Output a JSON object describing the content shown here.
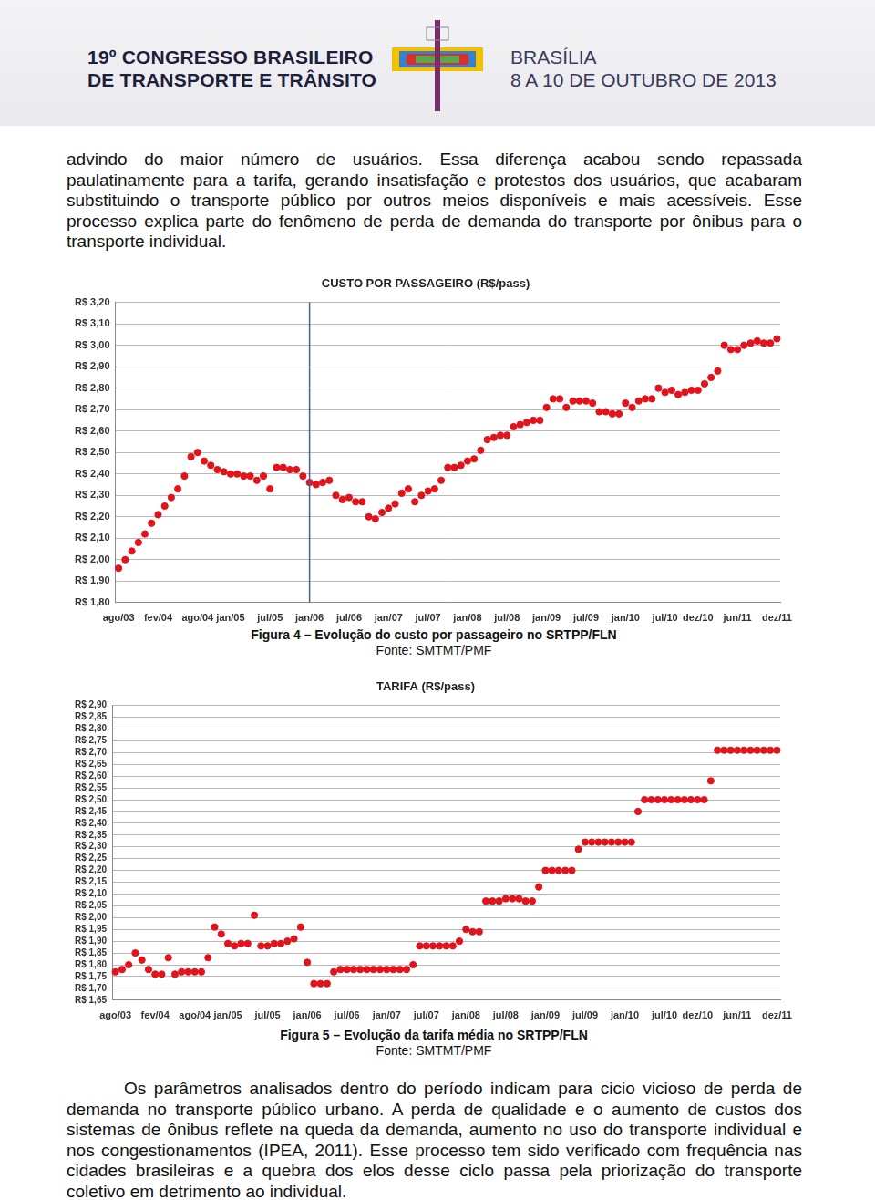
{
  "header": {
    "title_lines": [
      "19º CONGRESSO BRASILEIRO",
      "DE TRANSPORTE E TRÂNSITO"
    ],
    "place": "BRASÍLIA",
    "dates": "8 A 10 DE OUTUBRO DE 2013"
  },
  "paragraphs": [
    "advindo do maior número de usuários. Essa diferença acabou sendo repassada paulatinamente para a tarifa, gerando insatisfação e protestos dos usuários, que acabaram substituindo o transporte público por outros meios disponíveis e mais acessíveis. Esse processo explica parte do fenômeno de perda de demanda do transporte por ônibus para o transporte individual.",
    "Os parâmetros analisados dentro do período indicam para cicio vicioso de perda de demanda no transporte público urbano. A perda de qualidade e o aumento de custos dos sistemas de ônibus reflete na queda da demanda, aumento no uso do transporte individual e nos congestionamentos (IPEA, 2011). Esse processo tem sido verificado com frequência nas cidades brasileiras e a quebra dos elos desse ciclo passa pela priorização do transporte coletivo em detrimento ao individual."
  ],
  "captions": [
    {
      "title": "Figura 4 – Evolução do custo por passageiro no SRTPP/FLN",
      "source": "Fonte: SMTMT/PMF"
    },
    {
      "title": "Figura 5 – Evolução da tarifa média no SRTPP/FLN",
      "source": "Fonte: SMTMT/PMF"
    }
  ],
  "chart_data": [
    {
      "type": "line",
      "title": "CUSTO POR PASSAGEIRO (R$/pass)",
      "categories": [
        "ago/03",
        null,
        null,
        null,
        null,
        null,
        "fev/04",
        null,
        null,
        null,
        null,
        null,
        "ago/04",
        null,
        null,
        null,
        null,
        "jan/05",
        null,
        null,
        null,
        null,
        null,
        "jul/05",
        null,
        null,
        null,
        null,
        null,
        "jan/06",
        null,
        null,
        null,
        null,
        null,
        "jul/06",
        null,
        null,
        null,
        null,
        null,
        "jan/07",
        null,
        null,
        null,
        null,
        null,
        "jul/07",
        null,
        null,
        null,
        null,
        null,
        "jan/08",
        null,
        null,
        null,
        null,
        null,
        "jul/08",
        null,
        null,
        null,
        null,
        null,
        "jan/09",
        null,
        null,
        null,
        null,
        null,
        "jul/09",
        null,
        null,
        null,
        null,
        null,
        "jan/10",
        null,
        null,
        null,
        null,
        null,
        "jul/10",
        null,
        null,
        null,
        null,
        "dez/10",
        null,
        null,
        null,
        null,
        null,
        "jun/11",
        null,
        null,
        null,
        null,
        null,
        "dez/11"
      ],
      "values": [
        1.96,
        2.0,
        2.04,
        2.08,
        2.12,
        2.17,
        2.21,
        2.25,
        2.29,
        2.33,
        2.39,
        2.48,
        2.5,
        2.46,
        2.44,
        2.42,
        2.41,
        2.4,
        2.4,
        2.39,
        2.39,
        2.37,
        2.39,
        2.33,
        2.43,
        2.43,
        2.42,
        2.42,
        2.39,
        2.36,
        2.35,
        2.36,
        2.37,
        2.3,
        2.28,
        2.29,
        2.27,
        2.27,
        2.2,
        2.19,
        2.22,
        2.24,
        2.26,
        2.31,
        2.33,
        2.27,
        2.3,
        2.32,
        2.33,
        2.37,
        2.43,
        2.43,
        2.44,
        2.46,
        2.47,
        2.51,
        2.56,
        2.57,
        2.58,
        2.58,
        2.62,
        2.63,
        2.64,
        2.65,
        2.65,
        2.71,
        2.75,
        2.75,
        2.71,
        2.74,
        2.74,
        2.74,
        2.73,
        2.69,
        2.69,
        2.68,
        2.68,
        2.73,
        2.71,
        2.74,
        2.75,
        2.75,
        2.8,
        2.78,
        2.79,
        2.77,
        2.78,
        2.79,
        2.79,
        2.82,
        2.85,
        2.88,
        3.0,
        2.98,
        2.98,
        3.0,
        3.01,
        3.02,
        3.01,
        3.01,
        3.03
      ],
      "color": "#e3131b",
      "marker": "circle",
      "line_style": "none",
      "grid": true,
      "marker_line": "jan/06",
      "ylim": [
        1.8,
        3.2
      ],
      "yticks": [
        {
          "value": 1.8,
          "label": "R$ 1,80"
        },
        {
          "value": 1.9,
          "label": "R$ 1,90"
        },
        {
          "value": 2.0,
          "label": "R$ 2,00"
        },
        {
          "value": 2.1,
          "label": "R$ 2,10"
        },
        {
          "value": 2.2,
          "label": "R$ 2,20"
        },
        {
          "value": 2.3,
          "label": "R$ 2,30"
        },
        {
          "value": 2.4,
          "label": "R$ 2,40"
        },
        {
          "value": 2.5,
          "label": "R$ 2,50"
        },
        {
          "value": 2.6,
          "label": "R$ 2,60"
        },
        {
          "value": 2.7,
          "label": "R$ 2,70"
        },
        {
          "value": 2.8,
          "label": "R$ 2,80"
        },
        {
          "value": 2.9,
          "label": "R$ 2,90"
        },
        {
          "value": 3.0,
          "label": "R$ 3,00"
        },
        {
          "value": 3.1,
          "label": "R$ 3,10"
        },
        {
          "value": 3.2,
          "label": "R$ 3,20"
        }
      ]
    },
    {
      "type": "line",
      "title": "TARIFA (R$/pass)",
      "categories": [
        "ago/03",
        null,
        null,
        null,
        null,
        null,
        "fev/04",
        null,
        null,
        null,
        null,
        null,
        "ago/04",
        null,
        null,
        null,
        null,
        "jan/05",
        null,
        null,
        null,
        null,
        null,
        "jul/05",
        null,
        null,
        null,
        null,
        null,
        "jan/06",
        null,
        null,
        null,
        null,
        null,
        "jul/06",
        null,
        null,
        null,
        null,
        null,
        "jan/07",
        null,
        null,
        null,
        null,
        null,
        "jul/07",
        null,
        null,
        null,
        null,
        null,
        "jan/08",
        null,
        null,
        null,
        null,
        null,
        "jul/08",
        null,
        null,
        null,
        null,
        null,
        "jan/09",
        null,
        null,
        null,
        null,
        null,
        "jul/09",
        null,
        null,
        null,
        null,
        null,
        "jan/10",
        null,
        null,
        null,
        null,
        null,
        "jul/10",
        null,
        null,
        null,
        null,
        "dez/10",
        null,
        null,
        null,
        null,
        null,
        "jun/11",
        null,
        null,
        null,
        null,
        null,
        "dez/11"
      ],
      "values": [
        1.77,
        1.78,
        1.8,
        1.85,
        1.82,
        1.78,
        1.76,
        1.76,
        1.83,
        1.76,
        1.77,
        1.77,
        1.77,
        1.77,
        1.83,
        1.96,
        1.93,
        1.89,
        1.88,
        1.89,
        1.89,
        2.01,
        1.88,
        1.88,
        1.89,
        1.89,
        1.9,
        1.91,
        1.96,
        1.81,
        1.72,
        1.72,
        1.72,
        1.77,
        1.78,
        1.78,
        1.78,
        1.78,
        1.78,
        1.78,
        1.78,
        1.78,
        1.78,
        1.78,
        1.78,
        1.8,
        1.88,
        1.88,
        1.88,
        1.88,
        1.88,
        1.88,
        1.9,
        1.95,
        1.94,
        1.94,
        2.07,
        2.07,
        2.07,
        2.08,
        2.08,
        2.08,
        2.07,
        2.07,
        2.13,
        2.2,
        2.2,
        2.2,
        2.2,
        2.2,
        2.29,
        2.32,
        2.32,
        2.32,
        2.32,
        2.32,
        2.32,
        2.32,
        2.32,
        2.45,
        2.5,
        2.5,
        2.5,
        2.5,
        2.5,
        2.5,
        2.5,
        2.5,
        2.5,
        2.5,
        2.58,
        2.71,
        2.71,
        2.71,
        2.71,
        2.71,
        2.71,
        2.71,
        2.71,
        2.71,
        2.71
      ],
      "color": "#e3131b",
      "marker": "circle",
      "line_style": "none",
      "grid": true,
      "ylim": [
        1.65,
        2.9
      ],
      "yticks": [
        {
          "value": 1.65,
          "label": "R$ 1,65"
        },
        {
          "value": 1.7,
          "label": "R$ 1,70"
        },
        {
          "value": 1.75,
          "label": "R$ 1,75"
        },
        {
          "value": 1.8,
          "label": "R$ 1,80"
        },
        {
          "value": 1.85,
          "label": "R$ 1,85"
        },
        {
          "value": 1.9,
          "label": "R$ 1,90"
        },
        {
          "value": 1.95,
          "label": "R$ 1,95"
        },
        {
          "value": 2.0,
          "label": "R$ 2,00"
        },
        {
          "value": 2.05,
          "label": "R$ 2,05"
        },
        {
          "value": 2.1,
          "label": "R$ 2,10"
        },
        {
          "value": 2.15,
          "label": "R$ 2,15"
        },
        {
          "value": 2.2,
          "label": "R$ 2,20"
        },
        {
          "value": 2.25,
          "label": "R$ 2,25"
        },
        {
          "value": 2.3,
          "label": "R$ 2,30"
        },
        {
          "value": 2.35,
          "label": "R$ 2,35"
        },
        {
          "value": 2.4,
          "label": "R$ 2,40"
        },
        {
          "value": 2.45,
          "label": "R$ 2,45"
        },
        {
          "value": 2.5,
          "label": "R$ 2,50"
        },
        {
          "value": 2.55,
          "label": "R$ 2,55"
        },
        {
          "value": 2.6,
          "label": "R$ 2,60"
        },
        {
          "value": 2.65,
          "label": "R$ 2,65"
        },
        {
          "value": 2.7,
          "label": "R$ 2,70"
        },
        {
          "value": 2.75,
          "label": "R$ 2,75"
        },
        {
          "value": 2.8,
          "label": "R$ 2,80"
        },
        {
          "value": 2.85,
          "label": "R$ 2,85"
        },
        {
          "value": 2.9,
          "label": "R$ 2,90"
        }
      ]
    }
  ]
}
